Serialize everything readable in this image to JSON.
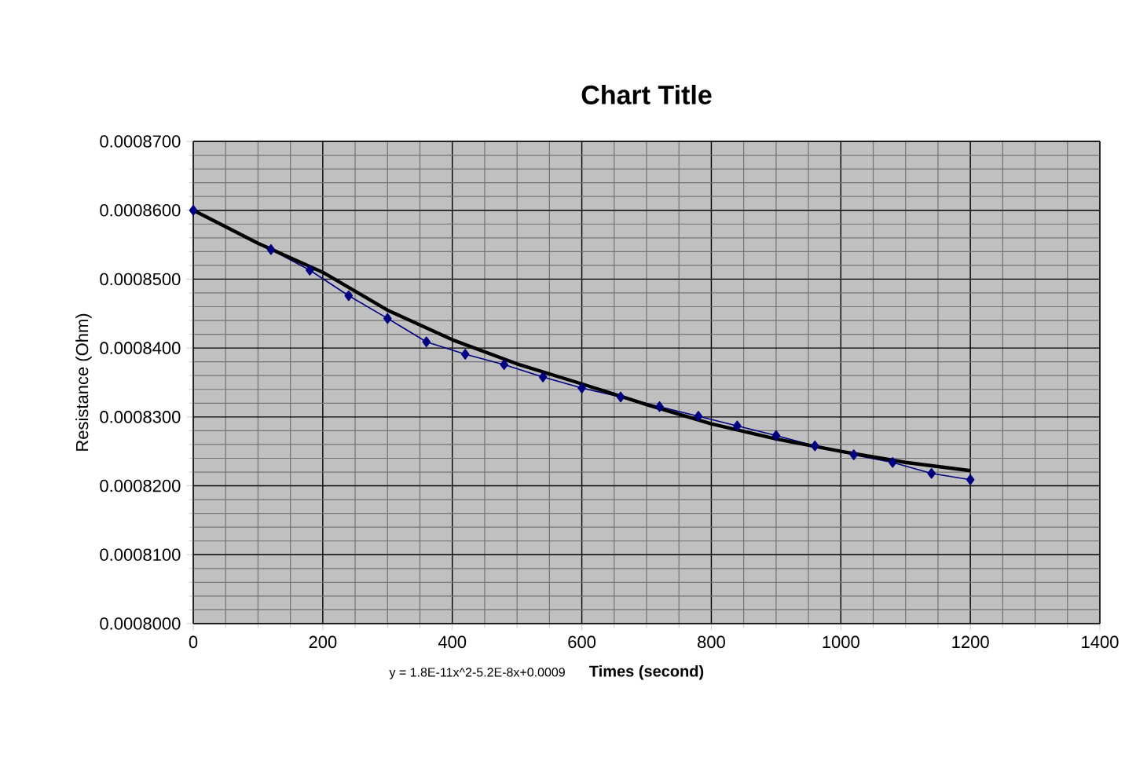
{
  "chart_data": {
    "type": "line",
    "title": "Chart Title",
    "xlabel": "Times (second)",
    "ylabel": "Resistance (Ohm)",
    "annotations": [
      "y = 1.8E-11x^2-5.2E-8x+0.0009"
    ],
    "xlim": [
      0,
      1400
    ],
    "xticks": [
      0,
      200,
      400,
      600,
      800,
      1000,
      1200,
      1400
    ],
    "ylim": [
      0.0008,
      0.00087
    ],
    "yticks": [
      {
        "value": 0.0008,
        "label": "0.0008000"
      },
      {
        "value": 0.00081,
        "label": "0.0008100"
      },
      {
        "value": 0.00082,
        "label": "0.0008200"
      },
      {
        "value": 0.00083,
        "label": "0.0008300"
      },
      {
        "value": 0.00084,
        "label": "0.0008400"
      },
      {
        "value": 0.00085,
        "label": "0.0008500"
      },
      {
        "value": 0.00086,
        "label": "0.0008600"
      },
      {
        "value": 0.00087,
        "label": "0.0008700"
      }
    ],
    "grid": true,
    "series": [
      {
        "color": "#000080",
        "marker": "diamond",
        "x": [
          0,
          120,
          180,
          240,
          300,
          360,
          420,
          480,
          540,
          600,
          660,
          720,
          780,
          840,
          900,
          960,
          1020,
          1080,
          1140,
          1200
        ],
        "values": [
          0.00086,
          0.0008543,
          0.0008513,
          0.0008476,
          0.0008443,
          0.0008409,
          0.0008391,
          0.0008376,
          0.0008358,
          0.0008342,
          0.0008329,
          0.0008315,
          0.0008301,
          0.0008287,
          0.0008273,
          0.0008258,
          0.0008245,
          0.0008234,
          0.0008218,
          0.0008209
        ]
      },
      {
        "color": "#000000",
        "marker": "none",
        "x": [
          0,
          100,
          200,
          300,
          400,
          500,
          600,
          700,
          800,
          900,
          1000,
          1100,
          1200
        ],
        "values": [
          0.00086,
          0.0008552,
          0.000851,
          0.0008455,
          0.0008412,
          0.0008377,
          0.0008348,
          0.0008318,
          0.000829,
          0.0008268,
          0.000825,
          0.0008234,
          0.0008222
        ]
      }
    ]
  }
}
